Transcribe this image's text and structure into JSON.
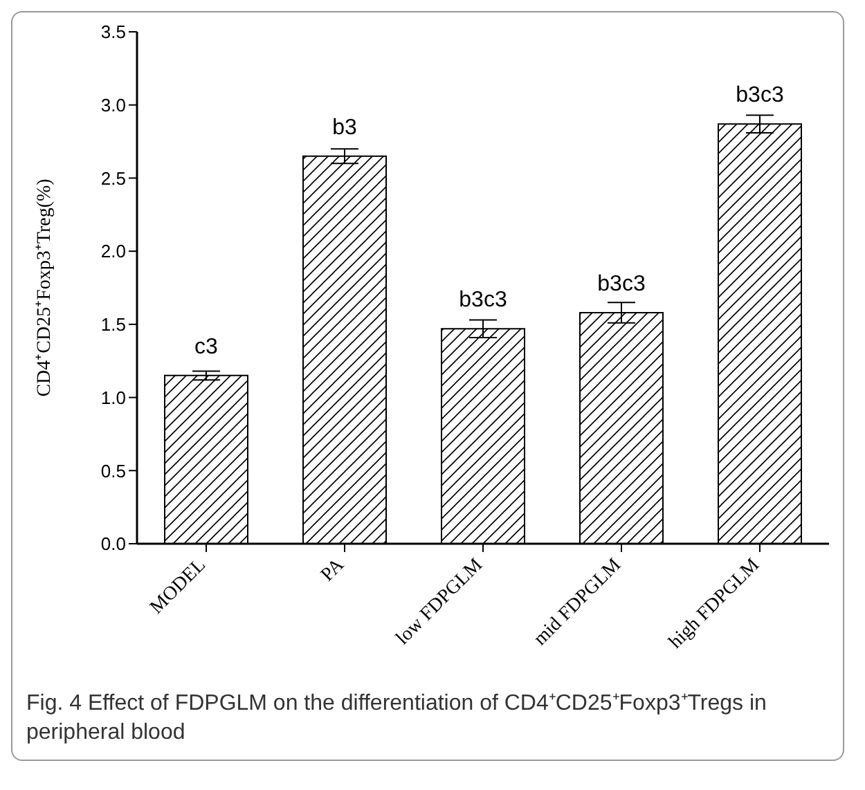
{
  "chart_data": {
    "type": "bar",
    "title": "Fig. 4 Effect of FDPGLM on the differentiation of CD4⁺CD25⁺Foxp3⁺Tregs in peripheral blood",
    "ylabel": "CD4⁺CD25⁺Foxp3⁺Treg(%)",
    "categories": [
      "MODEL",
      "PA",
      "low FDPGLM",
      "mid FDPGLM",
      "high FDPGLM"
    ],
    "values": [
      1.15,
      2.65,
      1.47,
      1.58,
      2.87
    ],
    "errors": [
      0.03,
      0.05,
      0.06,
      0.07,
      0.06
    ],
    "value_labels": [
      "c3",
      "b3",
      "b3c3",
      "b3c3",
      "b3c3"
    ],
    "color": "#000000",
    "ylim": [
      0,
      3.5
    ],
    "yticks": [
      {
        "value": 0,
        "label": "0.0"
      },
      {
        "value": 0.5,
        "label": "0.5"
      },
      {
        "value": 1,
        "label": "1.0"
      },
      {
        "value": 1.5,
        "label": "1.5"
      },
      {
        "value": 2,
        "label": "2.0"
      },
      {
        "value": 2.5,
        "label": "2.5"
      },
      {
        "value": 3,
        "label": "3.0"
      },
      {
        "value": 3.5,
        "label": "3.5"
      }
    ],
    "grid": false,
    "legend": false
  }
}
